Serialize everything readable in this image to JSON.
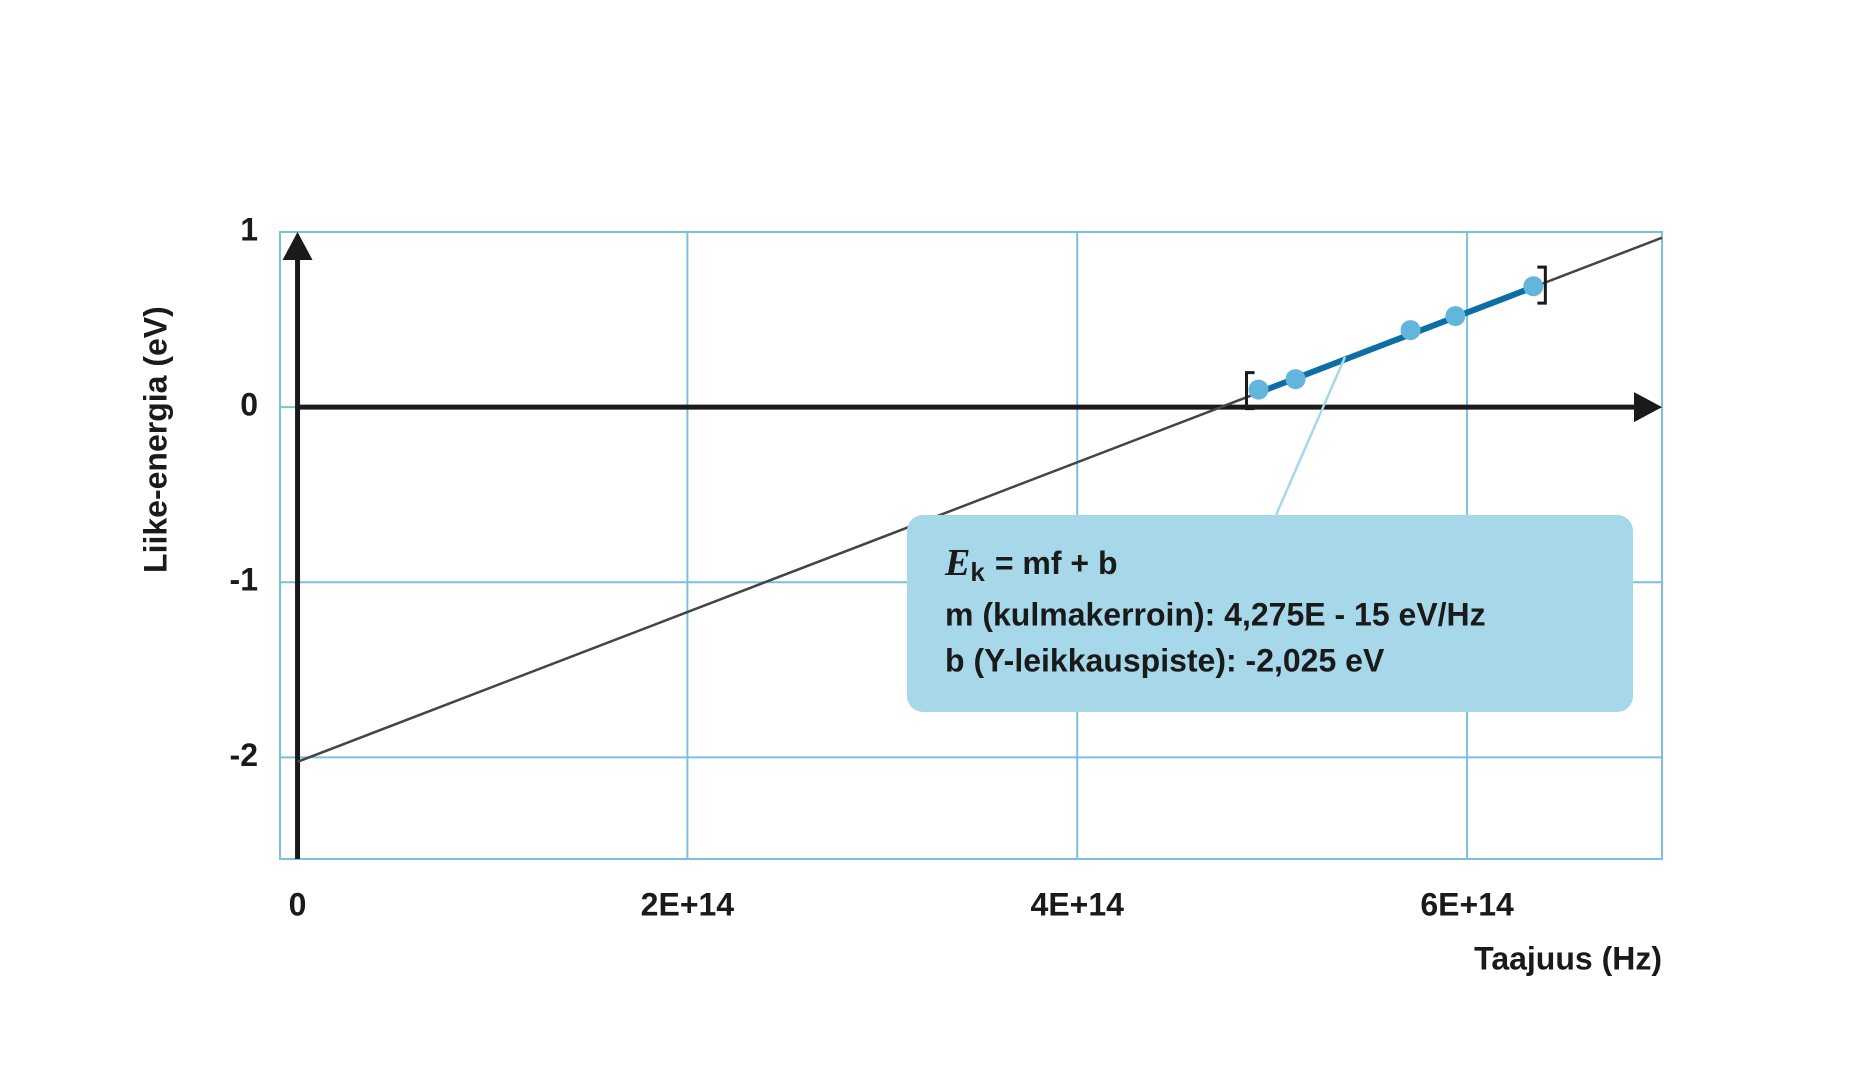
{
  "chart_data": {
    "type": "scatter",
    "x_label": "Taajuus (Hz)",
    "y_label": "Liike-energia (eV)",
    "x": [
      493000000000000.0,
      512000000000000.0,
      571000000000000.0,
      594000000000000.0,
      634000000000000.0
    ],
    "values": [
      0.1,
      0.16,
      0.44,
      0.52,
      0.69
    ],
    "color": "#62b6dc",
    "fit_line": {
      "x": [
        0,
        700000000000000.0
      ],
      "values": [
        -2.025,
        0.9675
      ],
      "color": "#444444"
    },
    "fit_segment": {
      "x": [
        493000000000000.0,
        634000000000000.0
      ],
      "values": [
        0.083,
        0.685
      ],
      "color": "#0b6ea6"
    },
    "xlim": [
      -9000000000000.0,
      700000000000000.0
    ],
    "ylim": [
      -2.58,
      1
    ],
    "xticks": [
      0,
      {
        "value": 200000000000000.0,
        "label": "2E+14"
      },
      {
        "value": 400000000000000.0,
        "label": "4E+14"
      },
      {
        "value": 600000000000000.0,
        "label": "6E+14"
      }
    ],
    "yticks": [
      -2,
      -1,
      0,
      1
    ],
    "grid": true,
    "grid_color": "#7cc0de",
    "annotation": {
      "symbol": "E",
      "subscript": "k",
      "equation": "= mf + b",
      "lines": [
        "m (kulmakerroin): 4,275E - 15 eV/Hz",
        "b (Y-leikkauspiste): -2,025 eV"
      ],
      "color": "#a6d8ea"
    }
  }
}
